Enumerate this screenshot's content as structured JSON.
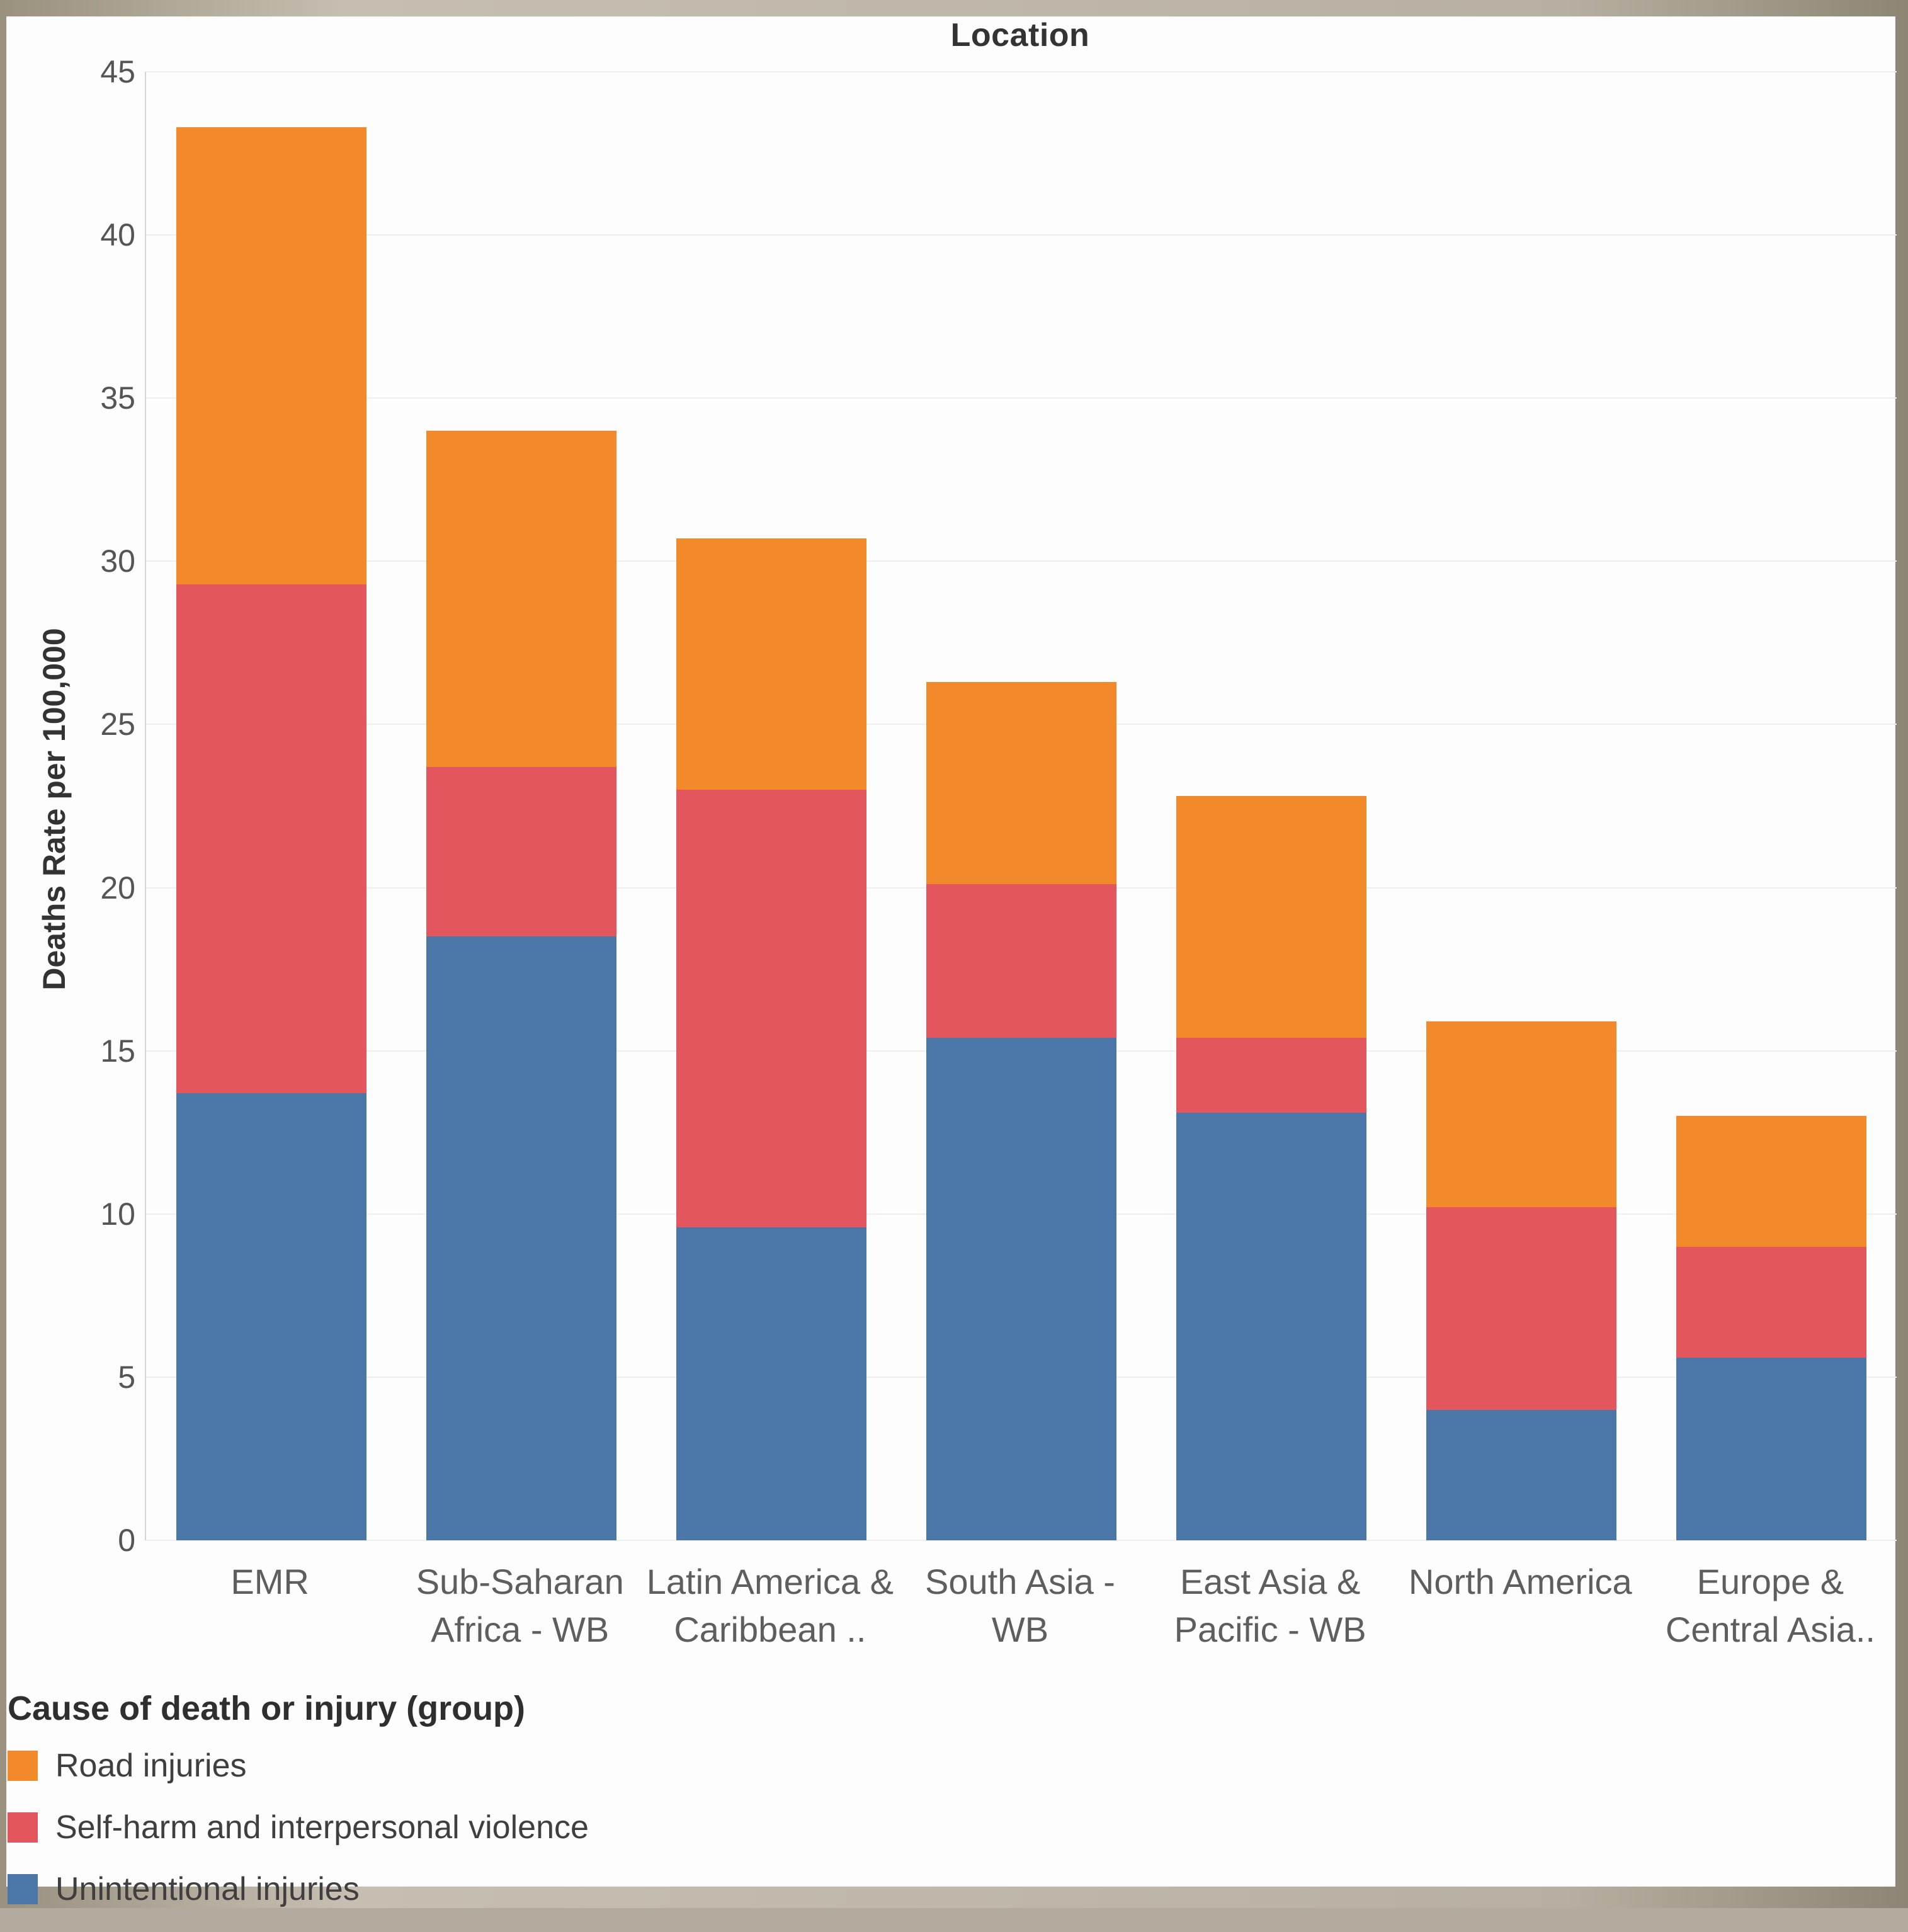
{
  "title": "Location",
  "ylabel": "Deaths Rate per 100,000",
  "legend": {
    "title": "Cause of death or injury (group)",
    "items": [
      {
        "label": "Road injuries",
        "color": "#f28a2c"
      },
      {
        "label": "Self-harm and interpersonal violence",
        "color": "#e4565e"
      },
      {
        "label": "Unintentional injuries",
        "color": "#4a77a7"
      }
    ]
  },
  "chart_data": {
    "type": "bar",
    "stacked": true,
    "title": "Location",
    "xlabel": "Location",
    "ylabel": "Deaths Rate per 100,000",
    "ylim": [
      0,
      45
    ],
    "yticks": [
      0,
      5,
      10,
      15,
      20,
      25,
      30,
      35,
      40,
      45
    ],
    "grid": true,
    "legend_position": "bottom-left",
    "categories": [
      "EMR",
      "Sub-Saharan Africa - WB",
      "Latin America & Caribbean ..",
      "South Asia - WB",
      "East Asia & Pacific - WB",
      "North America",
      "Europe & Central Asia.."
    ],
    "series": [
      {
        "name": "Unintentional injuries",
        "color": "#4a77a7",
        "values": [
          13.7,
          18.5,
          9.6,
          15.4,
          13.1,
          4.0,
          5.6
        ]
      },
      {
        "name": "Self-harm and interpersonal violence",
        "color": "#e4565e",
        "values": [
          15.6,
          5.2,
          13.4,
          4.7,
          2.3,
          6.2,
          3.4
        ]
      },
      {
        "name": "Road injuries",
        "color": "#f28a2c",
        "values": [
          14.0,
          10.3,
          7.7,
          6.2,
          7.4,
          5.7,
          4.0
        ]
      }
    ],
    "totals": [
      43.3,
      34.0,
      30.7,
      26.3,
      22.8,
      15.9,
      13.0
    ]
  }
}
